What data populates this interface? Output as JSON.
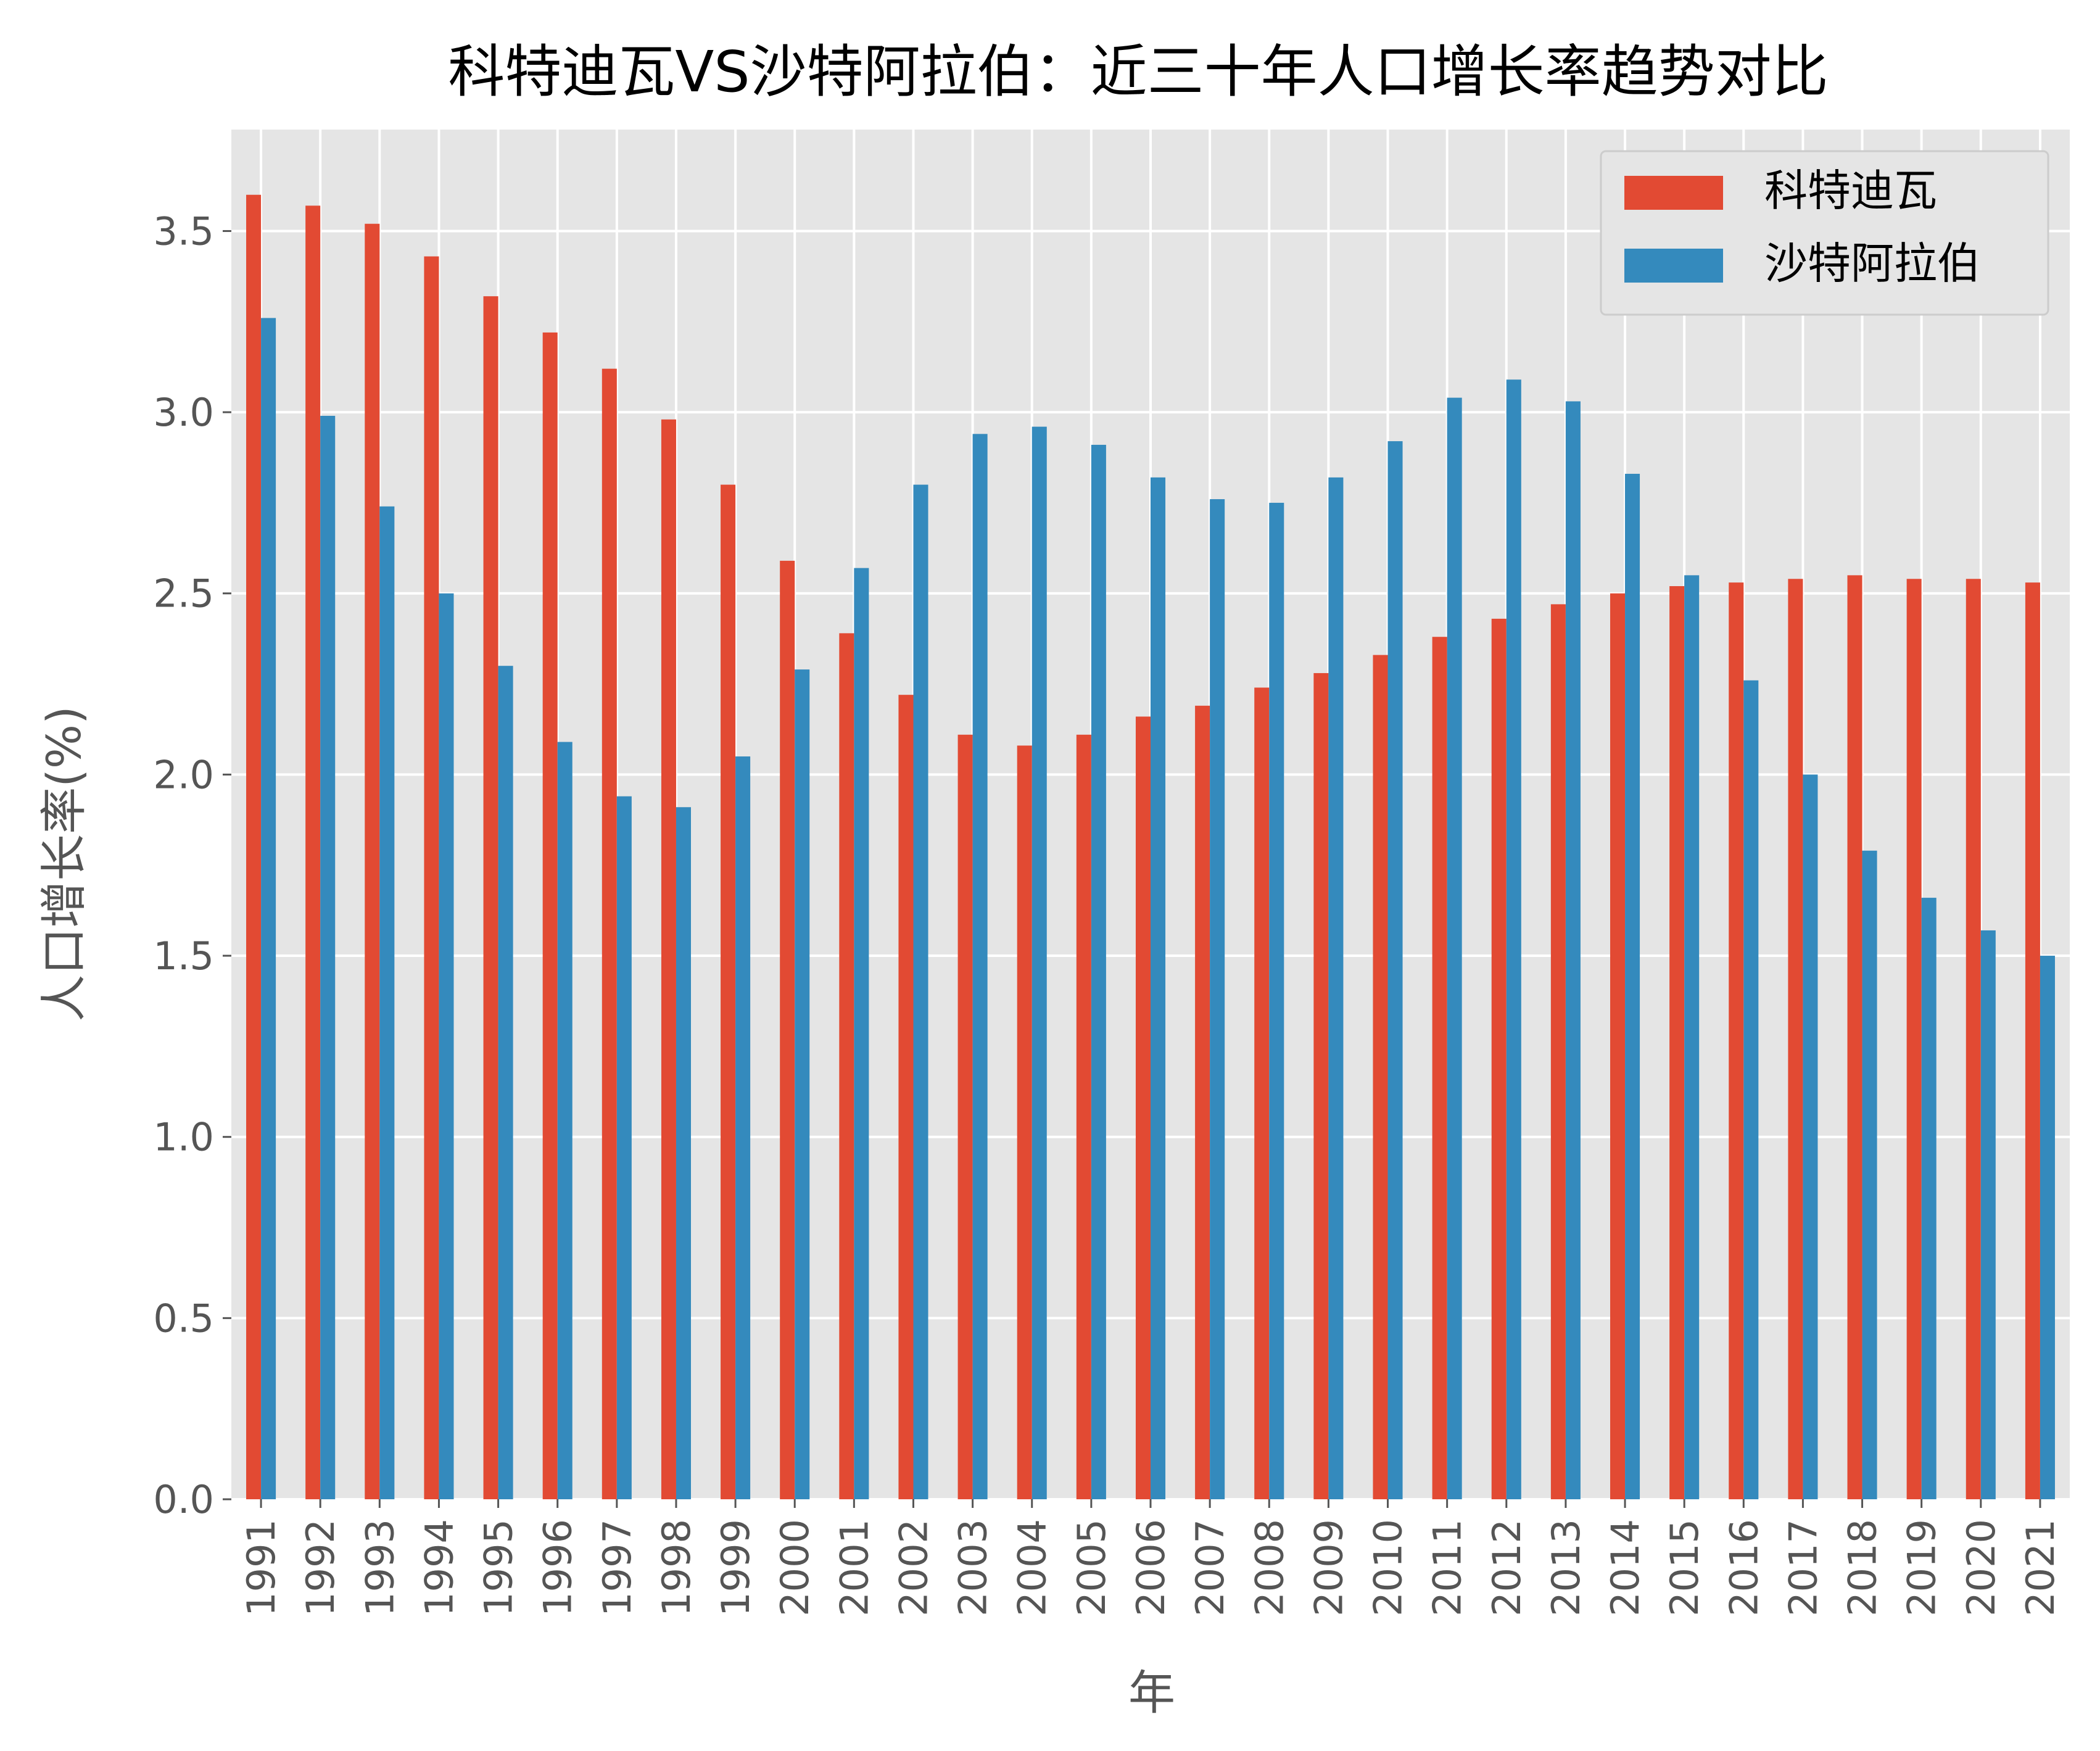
{
  "chart_data": {
    "type": "bar",
    "title": "科特迪瓦VS沙特阿拉伯：近三十年人口增长率趋势对比",
    "xlabel": "年",
    "ylabel": "人口增长率(%)",
    "ylim": [
      0,
      3.78
    ],
    "yticks": [
      0.0,
      0.5,
      1.0,
      1.5,
      2.0,
      2.5,
      3.0,
      3.5
    ],
    "ytick_labels": [
      "0.0",
      "0.5",
      "1.0",
      "1.5",
      "2.0",
      "2.5",
      "3.0",
      "3.5"
    ],
    "grid": true,
    "legend_position": "top-right",
    "categories": [
      "1991",
      "1992",
      "1993",
      "1994",
      "1995",
      "1996",
      "1997",
      "1998",
      "1999",
      "2000",
      "2001",
      "2002",
      "2003",
      "2004",
      "2005",
      "2006",
      "2007",
      "2008",
      "2009",
      "2010",
      "2011",
      "2012",
      "2013",
      "2014",
      "2015",
      "2016",
      "2017",
      "2018",
      "2019",
      "2020",
      "2021"
    ],
    "series": [
      {
        "name": "科特迪瓦",
        "color": "#E24A33",
        "values": [
          3.6,
          3.57,
          3.52,
          3.43,
          3.32,
          3.22,
          3.12,
          2.98,
          2.8,
          2.59,
          2.39,
          2.22,
          2.11,
          2.08,
          2.11,
          2.16,
          2.19,
          2.24,
          2.28,
          2.33,
          2.38,
          2.43,
          2.47,
          2.5,
          2.52,
          2.53,
          2.54,
          2.55,
          2.54,
          2.54,
          2.53
        ]
      },
      {
        "name": "沙特阿拉伯",
        "color": "#348ABD",
        "values": [
          3.26,
          2.99,
          2.74,
          2.5,
          2.3,
          2.09,
          1.94,
          1.91,
          2.05,
          2.29,
          2.57,
          2.8,
          2.94,
          2.96,
          2.91,
          2.82,
          2.76,
          2.75,
          2.82,
          2.92,
          3.04,
          3.09,
          3.03,
          2.83,
          2.55,
          2.26,
          2.0,
          1.79,
          1.66,
          1.57,
          1.5
        ]
      }
    ]
  }
}
